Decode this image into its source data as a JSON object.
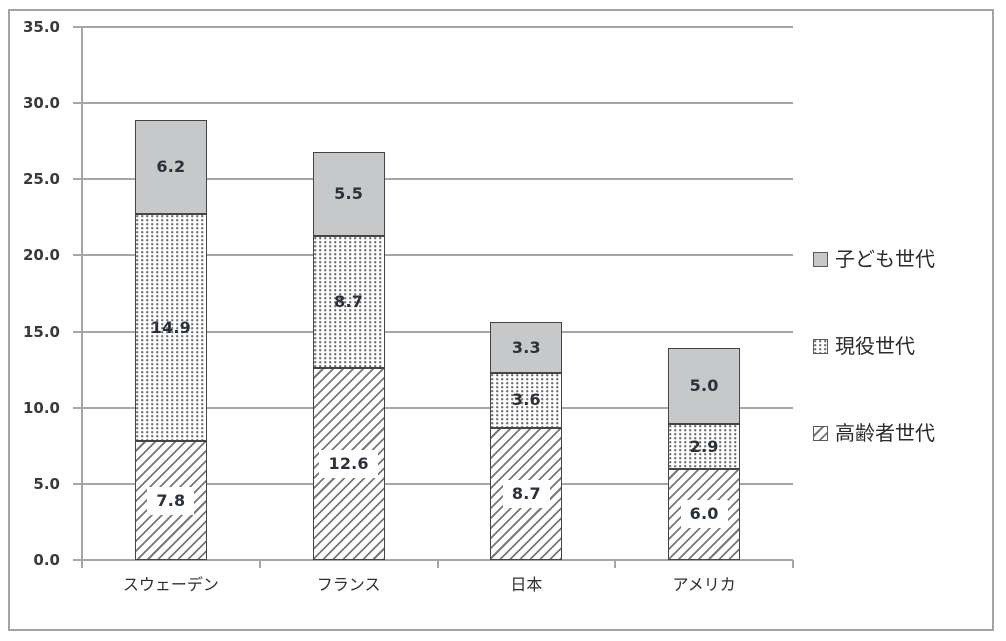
{
  "chart_data": {
    "type": "bar",
    "stacked": true,
    "title": "",
    "xlabel": "",
    "ylabel": "",
    "categories": [
      "スウェーデン",
      "フランス",
      "日本",
      "アメリカ"
    ],
    "series": [
      {
        "name": "高齢者世代",
        "pattern": "hatch",
        "values": [
          7.8,
          12.6,
          8.7,
          6.0
        ],
        "labels": [
          "7.8",
          "12.6",
          "8.7",
          "6.0"
        ]
      },
      {
        "name": "現役世代",
        "pattern": "dots",
        "values": [
          14.9,
          8.7,
          3.6,
          2.9
        ],
        "labels": [
          "14.9",
          "8.7",
          "3.6",
          "2.9"
        ]
      },
      {
        "name": "子ども世代",
        "pattern": "solid",
        "values": [
          6.2,
          5.5,
          3.3,
          5.0
        ],
        "labels": [
          "6.2",
          "5.5",
          "3.3",
          "5.0"
        ]
      }
    ],
    "ylim": [
      0,
      35
    ],
    "ytick_step": 5,
    "ytick_labels_top_to_bottom": [
      "35.0",
      "30.0",
      "25.0",
      "20.0",
      "15.0",
      "10.0",
      "5.0",
      "0.0"
    ],
    "grid": true,
    "legend_position": "right",
    "legend": [
      {
        "label": "子ども世代",
        "pattern": "solid"
      },
      {
        "label": "現役世代",
        "pattern": "dots"
      },
      {
        "label": "高齢者世代",
        "pattern": "hatch"
      }
    ],
    "colors": {
      "solid_fill": "#c7c8ca",
      "segment_border": "#454545",
      "grid": "#a6a6a6",
      "frame": "#a3a3a3",
      "label_text": "#29323c",
      "pattern_ink": "#777777"
    }
  }
}
